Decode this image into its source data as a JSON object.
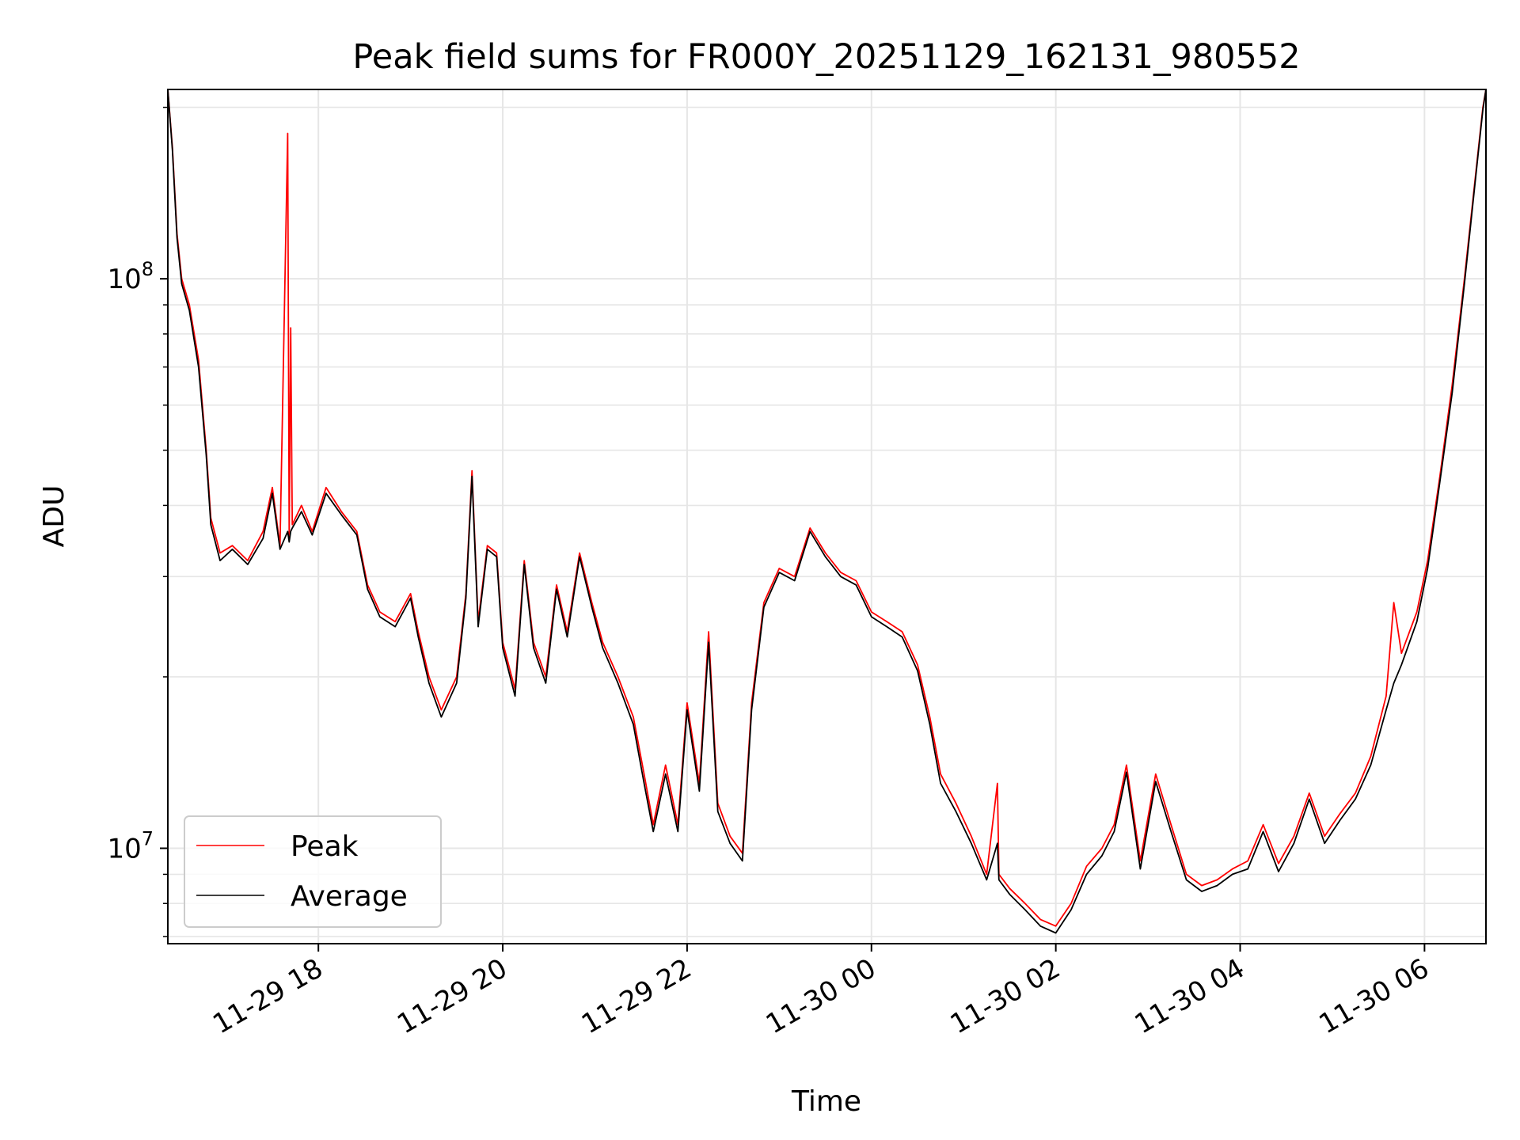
{
  "chart_data": {
    "type": "line",
    "title": "Peak field sums for FR000Y_20251129_162131_980552",
    "xlabel": "Time",
    "ylabel": "ADU",
    "x_range": [
      "2025-11-29 16:22",
      "2025-11-30 06:40"
    ],
    "y_scale": "log",
    "ylim": [
      6800000,
      215000000
    ],
    "grid": true,
    "legend_position": "lower-left",
    "x_ticks": [
      {
        "value": "2025-11-29 18:00",
        "label": "11-29 18"
      },
      {
        "value": "2025-11-29 20:00",
        "label": "11-29 20"
      },
      {
        "value": "2025-11-29 22:00",
        "label": "11-29 22"
      },
      {
        "value": "2025-11-30 00:00",
        "label": "11-30 00"
      },
      {
        "value": "2025-11-30 02:00",
        "label": "11-30 02"
      },
      {
        "value": "2025-11-30 04:00",
        "label": "11-30 04"
      },
      {
        "value": "2025-11-30 06:00",
        "label": "11-30 06"
      }
    ],
    "y_ticks": [
      {
        "value": 10000000,
        "base": "10",
        "exp": "7"
      },
      {
        "value": 100000000,
        "base": "10",
        "exp": "8"
      }
    ],
    "series": [
      {
        "name": "Peak",
        "color": "#ff0000",
        "points": [
          [
            "2025-11-29 16:22",
            215000000
          ],
          [
            "2025-11-29 16:25",
            170000000
          ],
          [
            "2025-11-29 16:28",
            120000000
          ],
          [
            "2025-11-29 16:31",
            100000000
          ],
          [
            "2025-11-29 16:36",
            90000000
          ],
          [
            "2025-11-29 16:42",
            72000000
          ],
          [
            "2025-11-29 16:47",
            50000000
          ],
          [
            "2025-11-29 16:50",
            38000000
          ],
          [
            "2025-11-29 16:56",
            33000000
          ],
          [
            "2025-11-29 17:04",
            34000000
          ],
          [
            "2025-11-29 17:14",
            32000000
          ],
          [
            "2025-11-29 17:24",
            36000000
          ],
          [
            "2025-11-29 17:30",
            43000000
          ],
          [
            "2025-11-29 17:35",
            34000000
          ],
          [
            "2025-11-29 17:40",
            180000000
          ],
          [
            "2025-11-29 17:41",
            35000000
          ],
          [
            "2025-11-29 17:42",
            82000000
          ],
          [
            "2025-11-29 17:43",
            37000000
          ],
          [
            "2025-11-29 17:49",
            40000000
          ],
          [
            "2025-11-29 17:56",
            36000000
          ],
          [
            "2025-11-29 18:05",
            43000000
          ],
          [
            "2025-11-29 18:15",
            39000000
          ],
          [
            "2025-11-29 18:25",
            36000000
          ],
          [
            "2025-11-29 18:32",
            29000000
          ],
          [
            "2025-11-29 18:40",
            26000000
          ],
          [
            "2025-11-29 18:50",
            25000000
          ],
          [
            "2025-11-29 19:00",
            28000000
          ],
          [
            "2025-11-29 19:05",
            24000000
          ],
          [
            "2025-11-29 19:12",
            20000000
          ],
          [
            "2025-11-29 19:20",
            17500000
          ],
          [
            "2025-11-29 19:30",
            20000000
          ],
          [
            "2025-11-29 19:36",
            28000000
          ],
          [
            "2025-11-29 19:40",
            46000000
          ],
          [
            "2025-11-29 19:44",
            25000000
          ],
          [
            "2025-11-29 19:50",
            34000000
          ],
          [
            "2025-11-29 19:56",
            33000000
          ],
          [
            "2025-11-29 20:00",
            23000000
          ],
          [
            "2025-11-29 20:08",
            19000000
          ],
          [
            "2025-11-29 20:14",
            32000000
          ],
          [
            "2025-11-29 20:20",
            23000000
          ],
          [
            "2025-11-29 20:28",
            20000000
          ],
          [
            "2025-11-29 20:35",
            29000000
          ],
          [
            "2025-11-29 20:42",
            24000000
          ],
          [
            "2025-11-29 20:50",
            33000000
          ],
          [
            "2025-11-29 20:58",
            27000000
          ],
          [
            "2025-11-29 21:05",
            23000000
          ],
          [
            "2025-11-29 21:15",
            20000000
          ],
          [
            "2025-11-29 21:25",
            17000000
          ],
          [
            "2025-11-29 21:32",
            13500000
          ],
          [
            "2025-11-29 21:38",
            11000000
          ],
          [
            "2025-11-29 21:46",
            14000000
          ],
          [
            "2025-11-29 21:54",
            11000000
          ],
          [
            "2025-11-29 22:00",
            18000000
          ],
          [
            "2025-11-29 22:08",
            13000000
          ],
          [
            "2025-11-29 22:14",
            24000000
          ],
          [
            "2025-11-29 22:20",
            12000000
          ],
          [
            "2025-11-29 22:28",
            10500000
          ],
          [
            "2025-11-29 22:36",
            9800000
          ],
          [
            "2025-11-29 22:42",
            18000000
          ],
          [
            "2025-11-29 22:50",
            27000000
          ],
          [
            "2025-11-29 23:00",
            31000000
          ],
          [
            "2025-11-29 23:10",
            30000000
          ],
          [
            "2025-11-29 23:20",
            36500000
          ],
          [
            "2025-11-29 23:30",
            33000000
          ],
          [
            "2025-11-29 23:40",
            30500000
          ],
          [
            "2025-11-29 23:50",
            29500000
          ],
          [
            "2025-11-30 00:00",
            26000000
          ],
          [
            "2025-11-30 00:10",
            25000000
          ],
          [
            "2025-11-30 00:20",
            24000000
          ],
          [
            "2025-11-30 00:30",
            21000000
          ],
          [
            "2025-11-30 00:38",
            17000000
          ],
          [
            "2025-11-30 00:45",
            13500000
          ],
          [
            "2025-11-30 00:55",
            12000000
          ],
          [
            "2025-11-30 01:05",
            10500000
          ],
          [
            "2025-11-30 01:15",
            9000000
          ],
          [
            "2025-11-30 01:22",
            13000000
          ],
          [
            "2025-11-30 01:23",
            9000000
          ],
          [
            "2025-11-30 01:30",
            8500000
          ],
          [
            "2025-11-30 01:40",
            8000000
          ],
          [
            "2025-11-30 01:50",
            7500000
          ],
          [
            "2025-11-30 02:00",
            7300000
          ],
          [
            "2025-11-30 02:10",
            8000000
          ],
          [
            "2025-11-30 02:20",
            9300000
          ],
          [
            "2025-11-30 02:30",
            10000000
          ],
          [
            "2025-11-30 02:38",
            11000000
          ],
          [
            "2025-11-30 02:46",
            14000000
          ],
          [
            "2025-11-30 02:55",
            9500000
          ],
          [
            "2025-11-30 03:05",
            13500000
          ],
          [
            "2025-11-30 03:15",
            11000000
          ],
          [
            "2025-11-30 03:25",
            9000000
          ],
          [
            "2025-11-30 03:35",
            8600000
          ],
          [
            "2025-11-30 03:45",
            8800000
          ],
          [
            "2025-11-30 03:55",
            9200000
          ],
          [
            "2025-11-30 04:05",
            9500000
          ],
          [
            "2025-11-30 04:15",
            11000000
          ],
          [
            "2025-11-30 04:25",
            9400000
          ],
          [
            "2025-11-30 04:35",
            10500000
          ],
          [
            "2025-11-30 04:45",
            12500000
          ],
          [
            "2025-11-30 04:55",
            10500000
          ],
          [
            "2025-11-30 05:05",
            11500000
          ],
          [
            "2025-11-30 05:15",
            12500000
          ],
          [
            "2025-11-30 05:25",
            14500000
          ],
          [
            "2025-11-30 05:35",
            18500000
          ],
          [
            "2025-11-30 05:40",
            27000000
          ],
          [
            "2025-11-30 05:45",
            22000000
          ],
          [
            "2025-11-30 05:55",
            26000000
          ],
          [
            "2025-11-30 06:02",
            32000000
          ],
          [
            "2025-11-30 06:10",
            45000000
          ],
          [
            "2025-11-30 06:18",
            65000000
          ],
          [
            "2025-11-30 06:26",
            100000000
          ],
          [
            "2025-11-30 06:33",
            150000000
          ],
          [
            "2025-11-30 06:38",
            200000000
          ],
          [
            "2025-11-30 06:40",
            215000000
          ]
        ]
      },
      {
        "name": "Average",
        "color": "#000000",
        "points": [
          [
            "2025-11-29 16:22",
            215000000
          ],
          [
            "2025-11-29 16:25",
            168000000
          ],
          [
            "2025-11-29 16:28",
            118000000
          ],
          [
            "2025-11-29 16:31",
            98000000
          ],
          [
            "2025-11-29 16:36",
            88000000
          ],
          [
            "2025-11-29 16:42",
            70000000
          ],
          [
            "2025-11-29 16:47",
            49000000
          ],
          [
            "2025-11-29 16:50",
            37000000
          ],
          [
            "2025-11-29 16:56",
            32000000
          ],
          [
            "2025-11-29 17:04",
            33500000
          ],
          [
            "2025-11-29 17:14",
            31500000
          ],
          [
            "2025-11-29 17:24",
            35000000
          ],
          [
            "2025-11-29 17:30",
            42000000
          ],
          [
            "2025-11-29 17:35",
            33500000
          ],
          [
            "2025-11-29 17:40",
            36000000
          ],
          [
            "2025-11-29 17:41",
            34500000
          ],
          [
            "2025-11-29 17:42",
            36000000
          ],
          [
            "2025-11-29 17:43",
            36500000
          ],
          [
            "2025-11-29 17:49",
            39000000
          ],
          [
            "2025-11-29 17:56",
            35500000
          ],
          [
            "2025-11-29 18:05",
            42000000
          ],
          [
            "2025-11-29 18:15",
            38500000
          ],
          [
            "2025-11-29 18:25",
            35500000
          ],
          [
            "2025-11-29 18:32",
            28500000
          ],
          [
            "2025-11-29 18:40",
            25500000
          ],
          [
            "2025-11-29 18:50",
            24500000
          ],
          [
            "2025-11-29 19:00",
            27500000
          ],
          [
            "2025-11-29 19:05",
            23500000
          ],
          [
            "2025-11-29 19:12",
            19500000
          ],
          [
            "2025-11-29 19:20",
            17000000
          ],
          [
            "2025-11-29 19:30",
            19500000
          ],
          [
            "2025-11-29 19:36",
            27500000
          ],
          [
            "2025-11-29 19:40",
            45000000
          ],
          [
            "2025-11-29 19:44",
            24500000
          ],
          [
            "2025-11-29 19:50",
            33500000
          ],
          [
            "2025-11-29 19:56",
            32500000
          ],
          [
            "2025-11-29 20:00",
            22500000
          ],
          [
            "2025-11-29 20:08",
            18500000
          ],
          [
            "2025-11-29 20:14",
            31500000
          ],
          [
            "2025-11-29 20:20",
            22500000
          ],
          [
            "2025-11-29 20:28",
            19500000
          ],
          [
            "2025-11-29 20:35",
            28500000
          ],
          [
            "2025-11-29 20:42",
            23500000
          ],
          [
            "2025-11-29 20:50",
            32500000
          ],
          [
            "2025-11-29 20:58",
            26500000
          ],
          [
            "2025-11-29 21:05",
            22500000
          ],
          [
            "2025-11-29 21:15",
            19500000
          ],
          [
            "2025-11-29 21:25",
            16500000
          ],
          [
            "2025-11-29 21:32",
            13000000
          ],
          [
            "2025-11-29 21:38",
            10700000
          ],
          [
            "2025-11-29 21:46",
            13500000
          ],
          [
            "2025-11-29 21:54",
            10700000
          ],
          [
            "2025-11-29 22:00",
            17500000
          ],
          [
            "2025-11-29 22:08",
            12600000
          ],
          [
            "2025-11-29 22:14",
            23000000
          ],
          [
            "2025-11-29 22:20",
            11600000
          ],
          [
            "2025-11-29 22:28",
            10200000
          ],
          [
            "2025-11-29 22:36",
            9500000
          ],
          [
            "2025-11-29 22:42",
            17500000
          ],
          [
            "2025-11-29 22:50",
            26500000
          ],
          [
            "2025-11-29 23:00",
            30500000
          ],
          [
            "2025-11-29 23:10",
            29500000
          ],
          [
            "2025-11-29 23:20",
            36000000
          ],
          [
            "2025-11-29 23:30",
            32500000
          ],
          [
            "2025-11-29 23:40",
            30000000
          ],
          [
            "2025-11-29 23:50",
            29000000
          ],
          [
            "2025-11-30 00:00",
            25500000
          ],
          [
            "2025-11-30 00:10",
            24500000
          ],
          [
            "2025-11-30 00:20",
            23500000
          ],
          [
            "2025-11-30 00:30",
            20500000
          ],
          [
            "2025-11-30 00:38",
            16500000
          ],
          [
            "2025-11-30 00:45",
            13000000
          ],
          [
            "2025-11-30 00:55",
            11600000
          ],
          [
            "2025-11-30 01:05",
            10200000
          ],
          [
            "2025-11-30 01:15",
            8800000
          ],
          [
            "2025-11-30 01:22",
            10200000
          ],
          [
            "2025-11-30 01:23",
            8800000
          ],
          [
            "2025-11-30 01:30",
            8300000
          ],
          [
            "2025-11-30 01:40",
            7800000
          ],
          [
            "2025-11-30 01:50",
            7300000
          ],
          [
            "2025-11-30 02:00",
            7100000
          ],
          [
            "2025-11-30 02:10",
            7800000
          ],
          [
            "2025-11-30 02:20",
            9000000
          ],
          [
            "2025-11-30 02:30",
            9700000
          ],
          [
            "2025-11-30 02:38",
            10700000
          ],
          [
            "2025-11-30 02:46",
            13600000
          ],
          [
            "2025-11-30 02:55",
            9200000
          ],
          [
            "2025-11-30 03:05",
            13100000
          ],
          [
            "2025-11-30 03:15",
            10700000
          ],
          [
            "2025-11-30 03:25",
            8800000
          ],
          [
            "2025-11-30 03:35",
            8400000
          ],
          [
            "2025-11-30 03:45",
            8600000
          ],
          [
            "2025-11-30 03:55",
            9000000
          ],
          [
            "2025-11-30 04:05",
            9200000
          ],
          [
            "2025-11-30 04:15",
            10700000
          ],
          [
            "2025-11-30 04:25",
            9100000
          ],
          [
            "2025-11-30 04:35",
            10200000
          ],
          [
            "2025-11-30 04:45",
            12200000
          ],
          [
            "2025-11-30 04:55",
            10200000
          ],
          [
            "2025-11-30 05:05",
            11200000
          ],
          [
            "2025-11-30 05:15",
            12200000
          ],
          [
            "2025-11-30 05:25",
            14000000
          ],
          [
            "2025-11-30 05:35",
            17500000
          ],
          [
            "2025-11-30 05:40",
            19500000
          ],
          [
            "2025-11-30 05:45",
            21000000
          ],
          [
            "2025-11-30 05:55",
            25000000
          ],
          [
            "2025-11-30 06:02",
            31000000
          ],
          [
            "2025-11-30 06:10",
            44000000
          ],
          [
            "2025-11-30 06:18",
            63000000
          ],
          [
            "2025-11-30 06:26",
            98000000
          ],
          [
            "2025-11-30 06:33",
            148000000
          ],
          [
            "2025-11-30 06:38",
            198000000
          ],
          [
            "2025-11-30 06:40",
            215000000
          ]
        ]
      }
    ]
  }
}
